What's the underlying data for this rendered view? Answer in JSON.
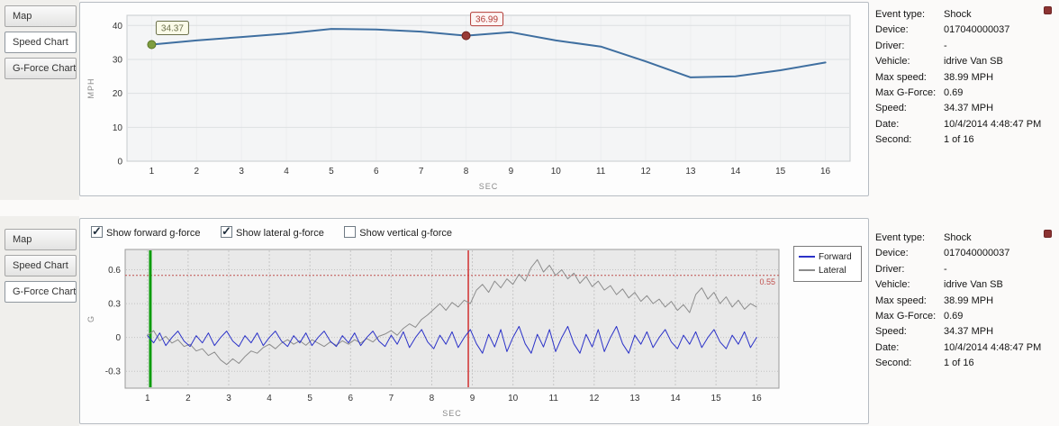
{
  "tabs_top": {
    "items": [
      {
        "label": "Map",
        "active": false
      },
      {
        "label": "Speed Chart",
        "active": true
      },
      {
        "label": "G-Force Chart",
        "active": false
      }
    ]
  },
  "tabs_bottom": {
    "items": [
      {
        "label": "Map",
        "active": false
      },
      {
        "label": "Speed Chart",
        "active": false
      },
      {
        "label": "G-Force Chart",
        "active": true
      }
    ]
  },
  "controls": {
    "checkboxes": [
      {
        "label": "Show forward g-force",
        "checked": true
      },
      {
        "label": "Show lateral g-force",
        "checked": true
      },
      {
        "label": "Show vertical g-force",
        "checked": false
      }
    ]
  },
  "info": {
    "rows": [
      {
        "label": "Event type:",
        "value": "Shock"
      },
      {
        "label": "Device:",
        "value": "017040000037"
      },
      {
        "label": "Driver:",
        "value": "-"
      },
      {
        "label": "Vehicle:",
        "value": "idrive Van SB"
      },
      {
        "label": "Max speed:",
        "value": "38.99 MPH"
      },
      {
        "label": "Max G-Force:",
        "value": "0.69"
      },
      {
        "label": "Speed:",
        "value": "34.37 MPH"
      },
      {
        "label": "Date:",
        "value": "10/4/2014 4:48:47 PM"
      },
      {
        "label": "Second:",
        "value": "1 of 16"
      }
    ]
  },
  "chart_data": [
    {
      "type": "line",
      "title": "Speed Chart",
      "xlabel": "SEC",
      "ylabel": "MPH",
      "xlim": [
        0.45,
        16.55
      ],
      "ylim": [
        0,
        43
      ],
      "x_ticks": [
        1,
        2,
        3,
        4,
        5,
        6,
        7,
        8,
        9,
        10,
        11,
        12,
        13,
        14,
        15,
        16
      ],
      "y_ticks": [
        0,
        10,
        20,
        30,
        40
      ],
      "series": [
        {
          "name": "Speed",
          "color": "#3f6fa0",
          "width": 2,
          "x": [
            1,
            2,
            3,
            4,
            5,
            6,
            7,
            8,
            9,
            10,
            11,
            12,
            13,
            14,
            15,
            16
          ],
          "values": [
            34.37,
            35.6,
            36.6,
            37.6,
            38.99,
            38.8,
            38.2,
            36.99,
            38.0,
            35.6,
            33.8,
            29.4,
            24.7,
            25.0,
            26.8,
            29.1
          ]
        }
      ],
      "markers": [
        {
          "x": 1,
          "y": 34.37,
          "label": "34.37",
          "color": "#7e9d40",
          "edge": "#5c7629",
          "label_color": "#6a6f4a",
          "box_fill": "#fbfbe8"
        },
        {
          "x": 8,
          "y": 36.99,
          "label": "36.99",
          "color": "#993a36",
          "edge": "#6e2320",
          "label_color": "#b23b36",
          "box_fill": "#fdf5f4"
        }
      ]
    },
    {
      "type": "line",
      "title": "G-Force Chart",
      "xlabel": "SEC",
      "ylabel": "G",
      "xlim": [
        0.45,
        16.55
      ],
      "ylim": [
        -0.45,
        0.78
      ],
      "x_ticks": [
        1,
        2,
        3,
        4,
        5,
        6,
        7,
        8,
        9,
        10,
        11,
        12,
        13,
        14,
        15,
        16
      ],
      "y_ticks": [
        -0.3,
        0,
        0.3,
        0.6
      ],
      "threshold": {
        "y": 0.55,
        "label": "0.55",
        "color": "#c0504d"
      },
      "cursor_lines": [
        {
          "x": 1.07,
          "color": "#0c9c0c",
          "width": 3
        },
        {
          "x": 8.9,
          "color": "#d03030",
          "width": 1.5
        }
      ],
      "legend_position": "right",
      "series": [
        {
          "name": "Forward",
          "color": "#2b32c8",
          "width": 1,
          "x_start": 1,
          "x_step": 0.15,
          "values": [
            0.016,
            -0.048,
            0.04,
            -0.072,
            0,
            0.056,
            -0.032,
            -0.08,
            0.016,
            -0.048,
            0.04,
            -0.072,
            0,
            0.056,
            -0.032,
            -0.08,
            0.016,
            -0.048,
            0.04,
            -0.072,
            0,
            0.056,
            -0.032,
            -0.08,
            0.016,
            -0.048,
            0.04,
            -0.072,
            0,
            0.056,
            -0.032,
            -0.08,
            0.016,
            -0.048,
            0.04,
            -0.072,
            0,
            0.056,
            -0.032,
            -0.08,
            0.02,
            -0.06,
            0.05,
            -0.09,
            0,
            0.07,
            -0.04,
            -0.1,
            0.02,
            -0.06,
            0.05,
            -0.09,
            0,
            0.07,
            -0.056,
            -0.14,
            0.028,
            -0.084,
            0.07,
            -0.126,
            0,
            0.098,
            -0.056,
            -0.14,
            0.028,
            -0.084,
            0.07,
            -0.126,
            0,
            0.098,
            -0.056,
            -0.14,
            0.028,
            -0.084,
            0.07,
            -0.126,
            0,
            0.098,
            -0.056,
            -0.14,
            0.02,
            -0.06,
            0.05,
            -0.09,
            0,
            0.07,
            -0.04,
            -0.1,
            0.02,
            -0.06,
            0.05,
            -0.09,
            0,
            0.07,
            -0.04,
            -0.1,
            0.02,
            -0.06,
            0.05,
            -0.09,
            0
          ]
        },
        {
          "name": "Lateral",
          "color": "#8c8c8c",
          "width": 1,
          "x_start": 1,
          "x_step": 0.15,
          "values": [
            0.02,
            0.06,
            -0.03,
            0.01,
            -0.05,
            -0.02,
            -0.08,
            -0.06,
            -0.12,
            -0.1,
            -0.16,
            -0.13,
            -0.2,
            -0.24,
            -0.19,
            -0.23,
            -0.17,
            -0.12,
            -0.14,
            -0.09,
            -0.06,
            -0.1,
            -0.05,
            -0.02,
            -0.06,
            -0.03,
            -0.07,
            -0.02,
            -0.05,
            -0.08,
            -0.04,
            -0.07,
            -0.03,
            -0.06,
            -0.02,
            -0.05,
            -0.01,
            -0.04,
            0.01,
            0.03,
            0.06,
            0.02,
            0.08,
            0.12,
            0.09,
            0.16,
            0.2,
            0.25,
            0.3,
            0.24,
            0.31,
            0.27,
            0.33,
            0.3,
            0.42,
            0.47,
            0.4,
            0.5,
            0.44,
            0.52,
            0.47,
            0.56,
            0.5,
            0.62,
            0.69,
            0.58,
            0.64,
            0.55,
            0.6,
            0.52,
            0.57,
            0.48,
            0.54,
            0.45,
            0.5,
            0.42,
            0.46,
            0.38,
            0.43,
            0.35,
            0.4,
            0.32,
            0.37,
            0.3,
            0.34,
            0.27,
            0.32,
            0.24,
            0.29,
            0.22,
            0.38,
            0.44,
            0.34,
            0.4,
            0.3,
            0.36,
            0.27,
            0.33,
            0.25,
            0.3,
            0.27
          ]
        }
      ]
    }
  ]
}
